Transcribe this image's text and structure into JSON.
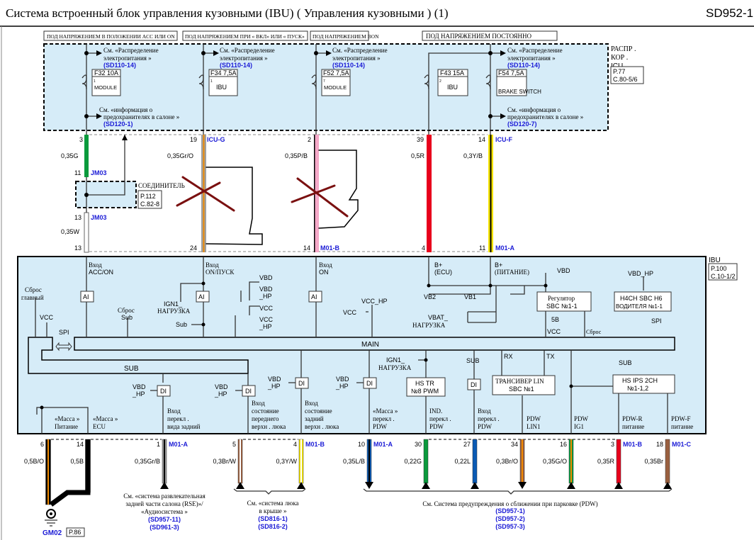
{
  "title": "Система  встроенный  блок  управления  кузовными  (IBU) ( Управления  кузовными  ) (1)",
  "page_code": "SD952-1",
  "headers": [
    "ПОД НАПРЯЖЕНИЕМ В ПОЛОЖЕНИИ ACC ИЛИ ON",
    "ПОД НАПРЯЖЕНИЕМ ПРИ « ВКЛ» ИЛИ « ПУСК»",
    "ПОД НАПРЯЖЕНИЕМ BON",
    "ПОД НАПРЯЖЕНИЕМ  ПОСТОЯННО"
  ],
  "fuse_panel": {
    "label": [
      "РАСПР .",
      "КОР .",
      "ICU"
    ],
    "ref": [
      "P.77",
      "C.80-5/6"
    ]
  },
  "power_ref": {
    "line1": "См. «Распределение",
    "line2": "электропитания  »",
    "code": "(SD110-14)"
  },
  "fuse_info_refs": [
    {
      "line1": "См. «информация  о",
      "line2": "предохранителях   в салоне »",
      "code": "(SD120-1)"
    },
    {
      "line1": "См. «информация  о",
      "line2": "предохранителях   в салоне »",
      "code": "(SD120-7)"
    }
  ],
  "fuses": [
    {
      "name": "F32 10A",
      "pin": "1",
      "label": "MODULE"
    },
    {
      "name": "F34 7,5A",
      "pin": "1",
      "label": "IBU"
    },
    {
      "name": "F52 7,5A",
      "pin": "7",
      "label": "MODULE"
    },
    {
      "name": "F43 15A",
      "pin": "2",
      "label": "IBU"
    },
    {
      "name": "F54 7,5A",
      "pin": "",
      "label": "BRAKE SWITCH"
    }
  ],
  "top_wires": [
    {
      "pin_top": "3",
      "size": "0,35G",
      "connector_top": "",
      "pin_bottom": "13",
      "connector_bottom": "",
      "color": "#0a9a3c"
    },
    {
      "pin_top": "19",
      "size": "0,35Gr/O",
      "connector_top": "ICU-G",
      "pin_bottom": "24",
      "connector_bottom": "",
      "color": "#a0a0a0",
      "stripe": "#f08a00"
    },
    {
      "pin_top": "2",
      "size": "0,35P/B",
      "connector_top": "",
      "pin_bottom": "14",
      "connector_bottom": "M01-B",
      "color": "#f5a8c8",
      "stripe": "#000"
    },
    {
      "pin_top": "39",
      "size": "0,5R",
      "connector_top": "",
      "pin_bottom": "4",
      "connector_bottom": "",
      "color": "#e8001c"
    },
    {
      "pin_top": "14",
      "size": "0,3Y/B",
      "connector_top": "ICU-F",
      "pin_bottom": "11",
      "connector_bottom": "M01-A",
      "color": "#f5e400",
      "stripe": "#000"
    }
  ],
  "jm03": {
    "pin1": "11",
    "pin2": "13",
    "name": "JM03",
    "size2": "0,35W",
    "label": "СОЕДИНИТЕЛЬ",
    "ref": [
      "P.112",
      "C.82-8"
    ]
  },
  "ibu": {
    "name": "IBU",
    "ref": [
      "P.100",
      "C.10-1/2"
    ],
    "inputs": [
      [
        "Вход",
        "ACC/ON"
      ],
      [
        "Вход",
        "ON/ПУСК"
      ],
      [
        "Вход",
        "ON"
      ],
      [
        "B+",
        "(ECU)"
      ],
      [
        "B+",
        "(ПИТАНИЕ)"
      ]
    ],
    "ai": "AI",
    "di": "DI",
    "reset_main": [
      "Сброс",
      "главный"
    ],
    "reset_sub": [
      "Сброс",
      "Sub"
    ],
    "vcc": "VCC",
    "spi": "SPI",
    "sub": "Sub",
    "sub_caps": "SUB",
    "main": "MAIN",
    "ign1": [
      "IGN1_",
      "НАГРУЗКА"
    ],
    "vbd": "VBD",
    "vbd_hp": [
      "VBD",
      "_HP"
    ],
    "vcc_hp": [
      "VCC",
      "_HP"
    ],
    "vcc_hp1": "VCC_HP",
    "vbd_hp1": "VBD_HP",
    "vb1": "VB1",
    "vb2": "VB2",
    "vbat": [
      "VBAT_",
      "НАГРУЗКА"
    ],
    "regulator": [
      "Регулятор",
      "SBC №1-1"
    ],
    "driver": [
      "H4CH SBC H6",
      "ВОДИТЕЛЯ №1-1"
    ],
    "v5": "5В",
    "reset": "Сброс",
    "rx": "RX",
    "tx": "TX",
    "hstr": [
      "HS TR",
      "№8 PWM"
    ],
    "lin": [
      "ТРАНСИВЕР LIN",
      "SBC №1"
    ],
    "hsips": [
      "HS IPS 2CH",
      "№1-1,2"
    ],
    "outputs": [
      [
        "«Масса »",
        "Питание"
      ],
      [
        "«Масса »",
        "ECU"
      ],
      [
        "Вход",
        "перекл .",
        "вида  задний"
      ],
      [
        "Вход",
        "состояние",
        "переднего",
        "верхн . люка"
      ],
      [
        "Вход",
        "состояние",
        "задний",
        "верхн . люка"
      ],
      [
        "«Масса »",
        "перекл .",
        "PDW"
      ],
      [
        "IND.",
        "перекл .",
        "PDW"
      ],
      [
        "Вход",
        "перекл .",
        "PDW"
      ],
      [
        "PDW",
        "LIN1"
      ],
      [
        "PDW",
        "IG1"
      ],
      [
        "PDW-R",
        "питание"
      ],
      [
        "PDW-F",
        "питание"
      ]
    ]
  },
  "bottom_wires": [
    {
      "pin": "6",
      "size": "0,5B/O",
      "connector": "",
      "color": "#000",
      "stripe": "#f08a00"
    },
    {
      "pin": "14",
      "size": "0,5B",
      "connector": "",
      "color": "#000"
    },
    {
      "pin": "1",
      "size": "0,35Gr/B",
      "connector": "M01-A",
      "color": "#a0a0a0",
      "stripe": "#000"
    },
    {
      "pin": "5",
      "size": "0,3Br/W",
      "connector": "",
      "color": "#9a6040",
      "stripe": "#fff"
    },
    {
      "pin": "4",
      "size": "0,3Y/W",
      "connector": "M01-B",
      "color": "#f5e400",
      "stripe": "#fff"
    },
    {
      "pin": "10",
      "size": "0,35L/B",
      "connector": "M01-A",
      "color": "#0a5ab4",
      "stripe": "#000"
    },
    {
      "pin": "30",
      "size": "0,22G",
      "connector": "",
      "color": "#0a9a3c"
    },
    {
      "pin": "27",
      "size": "0,22L",
      "connector": "",
      "color": "#0a5ab4"
    },
    {
      "pin": "34",
      "size": "0,3Br/O",
      "connector": "",
      "color": "#9a6040",
      "stripe": "#f08a00"
    },
    {
      "pin": "16",
      "size": "0,35G/O",
      "connector": "",
      "color": "#0a9a3c",
      "stripe": "#f08a00"
    },
    {
      "pin": "3",
      "size": "0,35R",
      "connector": "M01-B",
      "color": "#e8001c"
    },
    {
      "pin": "18",
      "size": "0,35Br",
      "connector": "M01-C",
      "color": "#9a6040"
    }
  ],
  "ground": {
    "name": "GM02",
    "ref": "P.86"
  },
  "refs": {
    "rse": {
      "lines": [
        "См. «система  развлекательная",
        "задней  части  салона (RSE)»/",
        "«Аудиосистема  »"
      ],
      "codes": [
        "(SD957-11)",
        "(SD961-3)"
      ]
    },
    "roof": {
      "lines": [
        "См. «система  люка",
        "в крыше »"
      ],
      "codes": [
        "(SD816-1)",
        "(SD816-2)"
      ]
    },
    "pdw": {
      "lines": [
        "См. Система  предупреждения  о сближении  при парковке  (PDW)"
      ],
      "codes": [
        "(SD957-1)",
        "(SD957-2)",
        "(SD957-3)"
      ]
    }
  }
}
